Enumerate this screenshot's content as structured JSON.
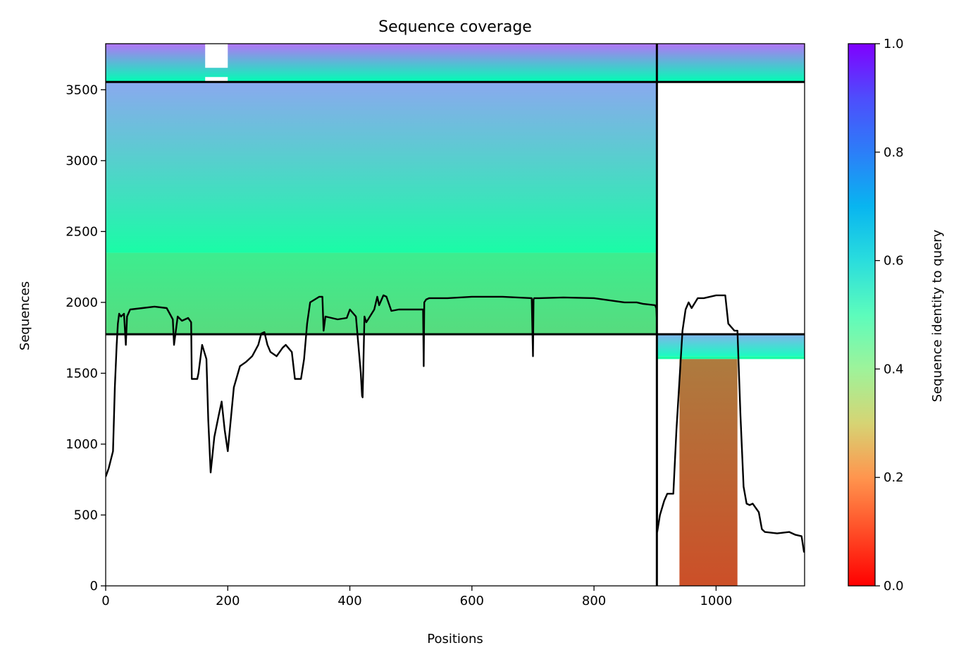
{
  "chart_data": {
    "type": "heatmap",
    "title": "Sequence coverage",
    "xlabel": "Positions",
    "ylabel": "Sequences",
    "colorbar_label": "Sequence identity to query",
    "colormap": "rainbow_r",
    "xlim": [
      0,
      1145
    ],
    "ylim": [
      0,
      3825
    ],
    "xticks": [
      0,
      200,
      400,
      600,
      800,
      1000
    ],
    "yticks": [
      0,
      500,
      1000,
      1500,
      2000,
      2500,
      3000,
      3500
    ],
    "colorbar_ticks": [
      "0.0",
      "0.2",
      "0.4",
      "0.6",
      "0.8",
      "1.0"
    ],
    "colorbar_range": [
      0,
      1
    ],
    "separators": {
      "vertical_x": 903,
      "horizontal_y": [
        1775,
        3555
      ]
    },
    "blocks": [
      {
        "x": [
          0,
          903
        ],
        "y": [
          3555,
          3825
        ],
        "identity_bottom": 0.5,
        "identity_top": 0.85
      },
      {
        "x": [
          903,
          1145
        ],
        "y": [
          3555,
          3825
        ],
        "identity_bottom": 0.5,
        "identity_top": 0.85
      },
      {
        "x": [
          0,
          903
        ],
        "y": [
          2350,
          3555
        ],
        "identity_bottom": 0.45,
        "identity_top": 0.77
      },
      {
        "x": [
          0,
          903
        ],
        "y": [
          1775,
          2350
        ],
        "identity_bottom": 0.33,
        "identity_top": 0.38
      },
      {
        "x": [
          903,
          1145
        ],
        "y": [
          1620,
          1775
        ],
        "identity_bottom": 0.55,
        "identity_top": 0.75
      },
      {
        "x": [
          903,
          1145
        ],
        "y": [
          1600,
          1620
        ],
        "identity_bottom": 0.45,
        "identity_top": 0.45
      },
      {
        "x": [
          940,
          1035
        ],
        "y": [
          0,
          1600
        ],
        "identity_bottom": 0.1,
        "identity_top": 0.16
      }
    ],
    "gaps": [
      {
        "x": [
          163,
          200
        ],
        "y": [
          3655,
          3825
        ]
      },
      {
        "x": [
          163,
          200
        ],
        "y": [
          3555,
          3590
        ]
      }
    ],
    "series": [
      {
        "name": "coverage",
        "color": "#000000",
        "x": [
          0,
          5,
          12,
          15,
          18,
          20,
          22,
          25,
          30,
          33,
          35,
          40,
          60,
          80,
          100,
          110,
          112,
          118,
          125,
          135,
          140,
          141,
          150,
          152,
          158,
          165,
          168,
          172,
          178,
          185,
          190,
          195,
          200,
          210,
          220,
          230,
          240,
          250,
          255,
          260,
          265,
          270,
          280,
          290,
          295,
          305,
          310,
          320,
          325,
          330,
          335,
          350,
          355,
          357,
          360,
          380,
          395,
          400,
          410,
          418,
          420,
          421,
          424,
          427,
          430,
          440,
          445,
          448,
          455,
          460,
          468,
          480,
          520,
          521,
          522,
          525,
          530,
          560,
          600,
          650,
          698,
          700,
          701,
          702,
          710,
          750,
          800,
          850,
          870,
          880,
          900,
          902,
          903,
          903.5,
          908,
          915,
          920,
          930,
          935,
          945,
          950,
          955,
          960,
          970,
          980,
          1000,
          1015,
          1020,
          1030,
          1035,
          1040,
          1045,
          1050,
          1055,
          1060,
          1070,
          1075,
          1080,
          1100,
          1120,
          1130,
          1140,
          1144,
          1145
        ],
        "y": [
          770,
          830,
          950,
          1400,
          1700,
          1850,
          1920,
          1900,
          1920,
          1700,
          1900,
          1950,
          1960,
          1970,
          1960,
          1880,
          1700,
          1900,
          1870,
          1890,
          1860,
          1460,
          1460,
          1500,
          1700,
          1600,
          1170,
          800,
          1050,
          1200,
          1300,
          1100,
          950,
          1400,
          1550,
          1580,
          1620,
          1700,
          1780,
          1790,
          1700,
          1650,
          1620,
          1680,
          1700,
          1650,
          1460,
          1460,
          1600,
          1850,
          2000,
          2040,
          2040,
          1800,
          1900,
          1880,
          1890,
          1950,
          1900,
          1500,
          1340,
          1330,
          1900,
          1860,
          1880,
          1950,
          2040,
          1980,
          2050,
          2040,
          1940,
          1950,
          1950,
          1550,
          2000,
          2020,
          2030,
          2030,
          2040,
          2040,
          2030,
          1620,
          2020,
          2030,
          2030,
          2035,
          2030,
          2000,
          2000,
          1990,
          1980,
          1960,
          1880,
          380,
          500,
          600,
          650,
          650,
          1100,
          1800,
          1950,
          2000,
          1960,
          2030,
          2030,
          2050,
          2050,
          1850,
          1800,
          1800,
          1200,
          700,
          580,
          570,
          580,
          520,
          400,
          380,
          370,
          380,
          360,
          350,
          240,
          240
        ]
      }
    ]
  }
}
